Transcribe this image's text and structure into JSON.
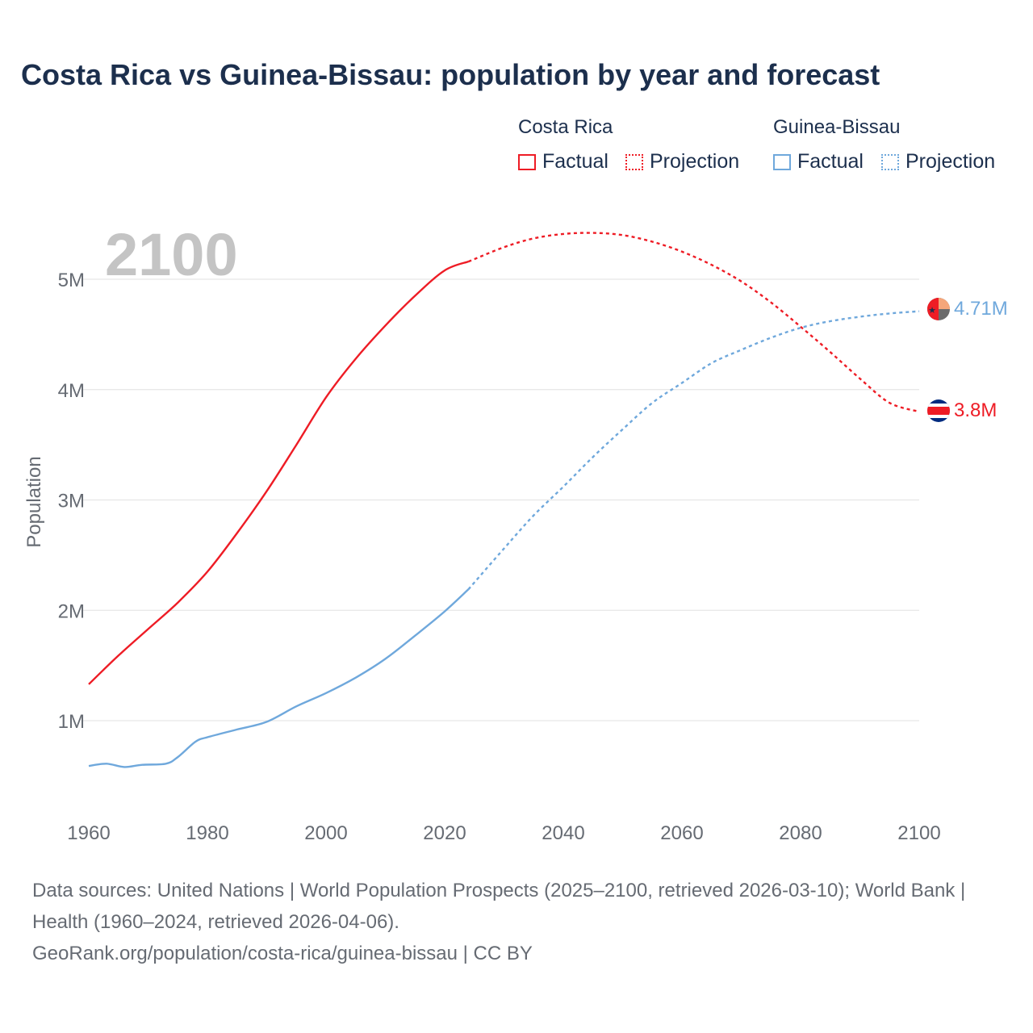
{
  "title": "Costa Rica vs Guinea-Bissau: population by year and forecast",
  "legend": {
    "groups": [
      {
        "name": "Costa Rica",
        "factual": "Factual",
        "projection": "Projection",
        "color": "#ee1c25"
      },
      {
        "name": "Guinea-Bissau",
        "factual": "Factual",
        "projection": "Projection",
        "color": "#6fa8dc"
      }
    ]
  },
  "source": {
    "line1": "Data sources: United Nations | World Population Prospects (2025–2100, retrieved 2026-03-10); World Bank | Health (1960–2024, retrieved 2026-04-06).",
    "line2": "GeoRank.org/population/costa-rica/guinea-bissau | CC BY"
  },
  "chart_data": {
    "type": "line",
    "title": "Costa Rica vs Guinea-Bissau: population by year and forecast",
    "year_watermark": "2100",
    "xlabel": "",
    "ylabel": "Population",
    "xlim": [
      1960,
      2100
    ],
    "ylim": [
      0.3,
      5.5
    ],
    "x_ticks": [
      1960,
      1980,
      2000,
      2020,
      2040,
      2060,
      2080,
      2100
    ],
    "y_ticks": [
      1,
      2,
      3,
      4,
      5
    ],
    "y_tick_labels": [
      "1M",
      "2M",
      "3M",
      "4M",
      "5M"
    ],
    "grid": true,
    "series": [
      {
        "name": "Costa Rica",
        "color": "#ee1c25",
        "factual": {
          "x": [
            1960,
            1965,
            1970,
            1975,
            1980,
            1985,
            1990,
            1995,
            2000,
            2005,
            2010,
            2015,
            2020,
            2024
          ],
          "y": [
            1.33,
            1.59,
            1.83,
            2.07,
            2.35,
            2.7,
            3.08,
            3.5,
            3.93,
            4.28,
            4.58,
            4.85,
            5.08,
            5.16
          ]
        },
        "projection": {
          "x": [
            2024,
            2030,
            2035,
            2040,
            2045,
            2050,
            2055,
            2060,
            2065,
            2070,
            2075,
            2080,
            2085,
            2090,
            2095,
            2100
          ],
          "y": [
            5.16,
            5.29,
            5.37,
            5.41,
            5.42,
            5.4,
            5.34,
            5.25,
            5.13,
            4.98,
            4.79,
            4.57,
            4.34,
            4.1,
            3.88,
            3.8
          ]
        },
        "end_label": "3.8M"
      },
      {
        "name": "Guinea-Bissau",
        "color": "#6fa8dc",
        "factual": {
          "x": [
            1960,
            1963,
            1966,
            1969,
            1973,
            1975,
            1978,
            1980,
            1985,
            1990,
            1995,
            2000,
            2005,
            2010,
            2015,
            2020,
            2024
          ],
          "y": [
            0.59,
            0.61,
            0.58,
            0.6,
            0.61,
            0.67,
            0.81,
            0.85,
            0.92,
            0.99,
            1.13,
            1.25,
            1.39,
            1.56,
            1.77,
            1.99,
            2.19
          ]
        },
        "projection": {
          "x": [
            2024,
            2030,
            2035,
            2040,
            2045,
            2050,
            2055,
            2060,
            2065,
            2070,
            2075,
            2080,
            2085,
            2090,
            2095,
            2100
          ],
          "y": [
            2.19,
            2.56,
            2.86,
            3.12,
            3.39,
            3.64,
            3.88,
            4.06,
            4.24,
            4.36,
            4.47,
            4.56,
            4.62,
            4.66,
            4.69,
            4.71
          ]
        },
        "end_label": "4.71M"
      }
    ]
  }
}
